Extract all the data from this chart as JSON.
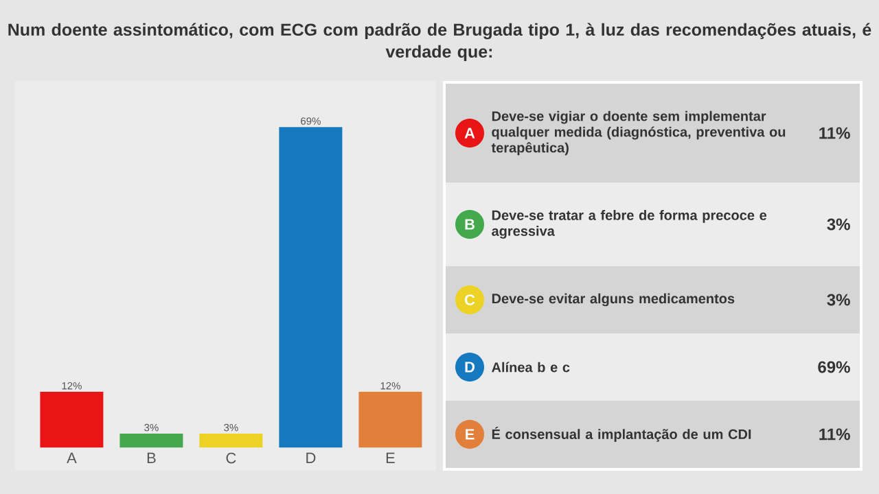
{
  "chart_data": [
    {
      "type": "bar",
      "title": "Num doente assintomático, com ECG com padrão de Brugada tipo 1, à luz das recomendações atuais, é verdade que:",
      "categories": [
        "A",
        "B",
        "C",
        "D",
        "E"
      ],
      "values": [
        12,
        3,
        3,
        69,
        12
      ],
      "colors": [
        "#e81416",
        "#43a94c",
        "#ecd224",
        "#1479bf",
        "#e27f3b"
      ],
      "value_labels": [
        "12%",
        "3%",
        "3%",
        "69%",
        "12%"
      ]
    },
    {
      "type": "other",
      "colors": [
        "#e81416",
        "#43a94c",
        "#ecd224",
        "#1479bf",
        "#e27f3b"
      ],
      "annotations": [
        "A",
        "Deve-se vigiar o doente sem implementar qualquer medida (diagnóstica, preventiva ou terapêutica)",
        "11%",
        "B",
        "Deve-se tratar a febre de forma precoce e agressiva",
        "3%",
        "C",
        "Deve-se evitar alguns medicamentos",
        "3%",
        "D",
        "Alínea b e c",
        "69%",
        "E",
        "É consensual a implantação de um CDI",
        "11%"
      ]
    }
  ]
}
